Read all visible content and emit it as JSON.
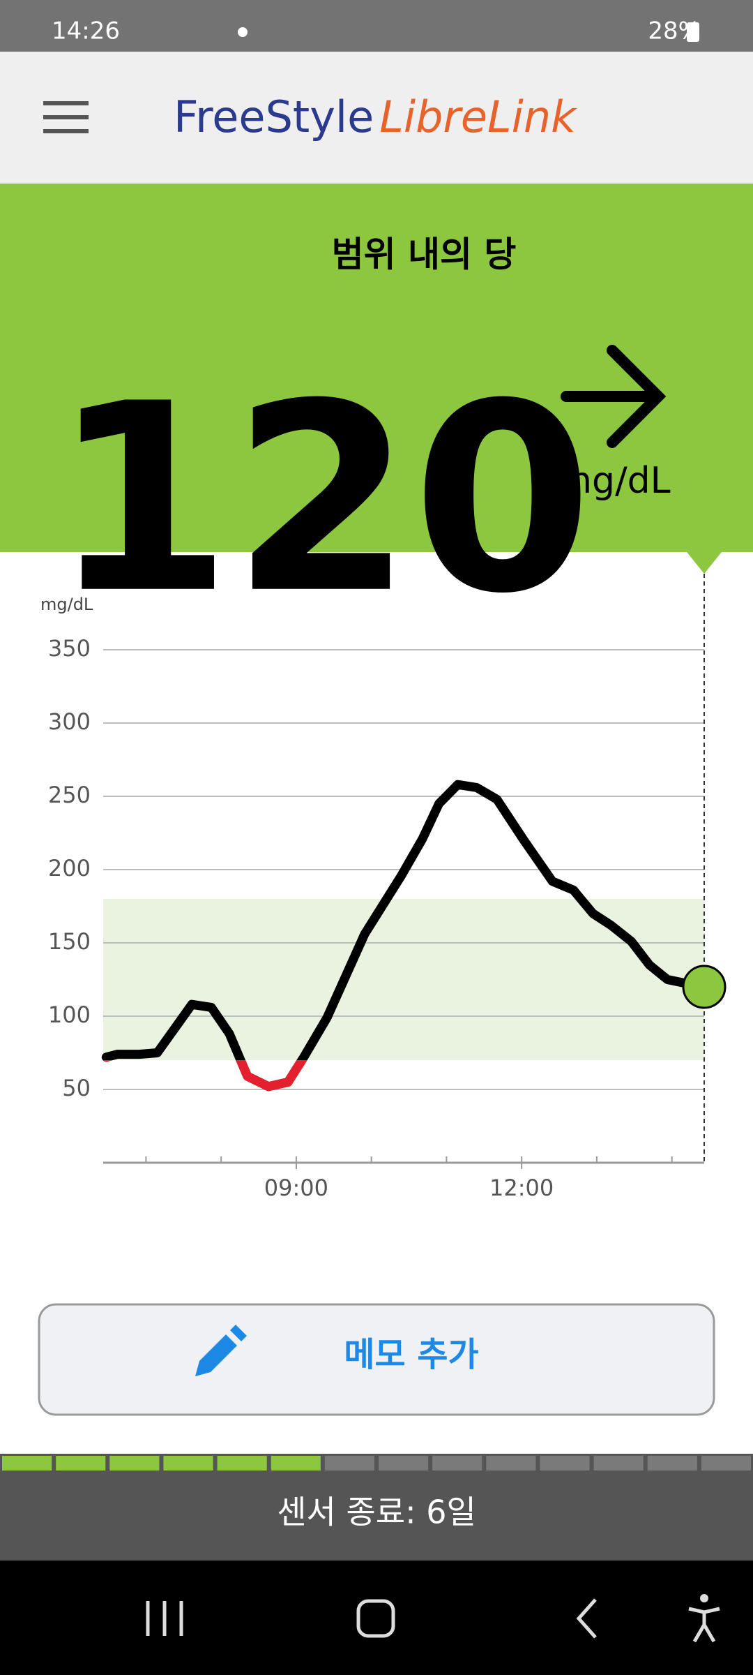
{
  "status_bar": {
    "time": "14:26",
    "battery": "28%"
  },
  "header": {
    "brand_main": "FreeStyle",
    "brand_accent": "LibreLink"
  },
  "reading": {
    "status": "범위 내의 당",
    "value": 120,
    "unit": "mg/dL"
  },
  "chart_data": {
    "type": "line",
    "y_label": "mg/dL",
    "x": [
      6.47,
      6.62,
      6.91,
      7.15,
      7.61,
      7.87,
      8.11,
      8.35,
      8.63,
      8.89,
      9.1,
      9.41,
      9.91,
      10.4,
      10.68,
      10.9,
      11.15,
      11.4,
      11.67,
      12.03,
      12.41,
      12.69,
      12.95,
      13.19,
      13.46,
      13.7,
      13.94,
      14.22,
      14.43
    ],
    "values": [
      72,
      74,
      74,
      75,
      108,
      106,
      88,
      59,
      52,
      55,
      72,
      99,
      156,
      196,
      221,
      245,
      258,
      256,
      248,
      220,
      192,
      186,
      170,
      162,
      151,
      135,
      125,
      122,
      120
    ],
    "color": "#000000",
    "low_threshold": 70,
    "low_color": "#e5202e",
    "target_range": [
      70,
      180
    ],
    "target_color": "#eaf3e0",
    "xlim": [
      6.43,
      14.43
    ],
    "ylim": [
      0,
      400
    ],
    "yticks": [
      50,
      100,
      150,
      200,
      250,
      300,
      350
    ],
    "xticks": [
      {
        "value": 9,
        "label": "09:00"
      },
      {
        "value": 12,
        "label": "12:00"
      }
    ],
    "minor_xticks": [
      7,
      8,
      10,
      11,
      13,
      14
    ],
    "grid": true
  },
  "memo_button": {
    "label": "메모 추가"
  },
  "sensor": {
    "label": "센서 종료: 6일",
    "segments": 14,
    "filled": 6
  }
}
